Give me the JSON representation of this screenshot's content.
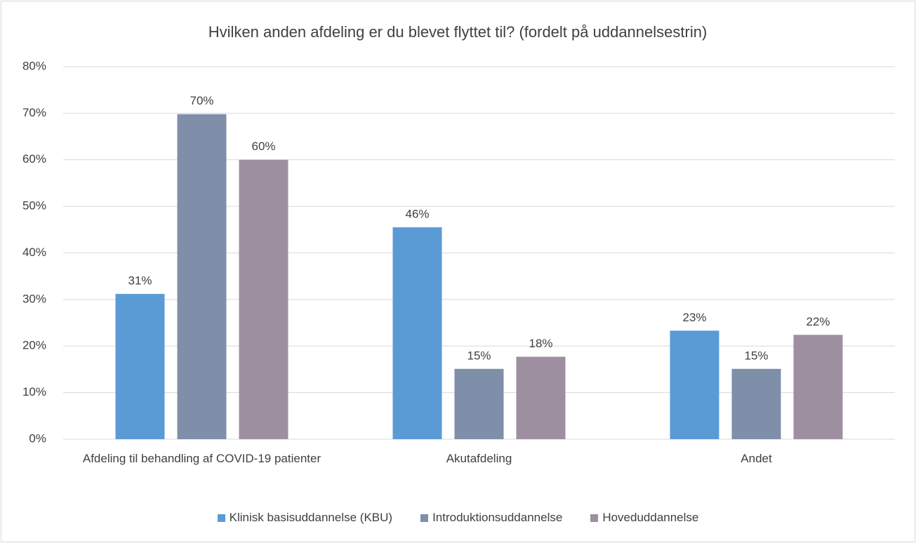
{
  "chart_data": {
    "type": "bar",
    "title": "Hvilken anden afdeling er du blevet flyttet til? (fordelt på uddannelsestrin)",
    "categories": [
      "Afdeling til behandling af COVID-19 patienter",
      "Akutafdeling",
      "Andet"
    ],
    "series": [
      {
        "name": "Klinisk basisuddannelse (KBU)",
        "color": "#5b9bd5",
        "values": [
          31.2,
          45.5,
          23.3
        ],
        "value_labels": [
          "31%",
          "46%",
          "23%"
        ]
      },
      {
        "name": "Introduktionsuddannelse",
        "color": "#7f8faa",
        "values": [
          69.8,
          15.1,
          15.1
        ],
        "value_labels": [
          "70%",
          "15%",
          "15%"
        ]
      },
      {
        "name": "Hoveduddannelse",
        "color": "#9e8fa0",
        "values": [
          60.0,
          17.7,
          22.4
        ],
        "value_labels": [
          "60%",
          "18%",
          "22%"
        ]
      }
    ],
    "ylim": [
      0,
      80
    ],
    "yticks": [
      {
        "value": 0,
        "label": "0%"
      },
      {
        "value": 10,
        "label": "10%"
      },
      {
        "value": 20,
        "label": "20%"
      },
      {
        "value": 30,
        "label": "30%"
      },
      {
        "value": 40,
        "label": "40%"
      },
      {
        "value": 50,
        "label": "50%"
      },
      {
        "value": 60,
        "label": "60%"
      },
      {
        "value": 70,
        "label": "70%"
      },
      {
        "value": 80,
        "label": "80%"
      }
    ],
    "grid": true,
    "legend": "bottom"
  }
}
